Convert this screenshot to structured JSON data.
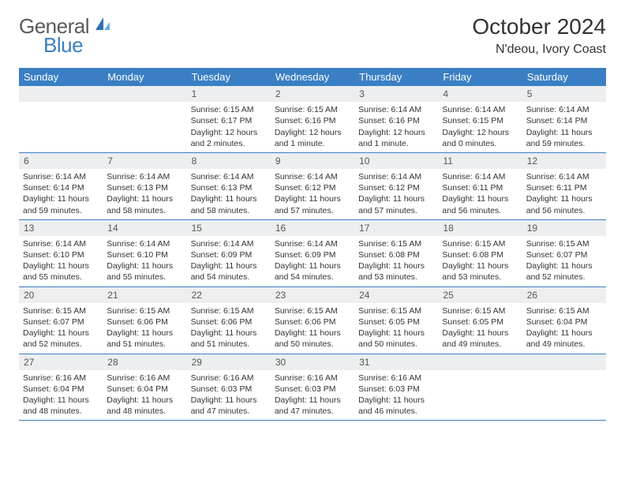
{
  "brand": {
    "general": "General",
    "blue": "Blue"
  },
  "title": "October 2024",
  "location": "N'deou, Ivory Coast",
  "colors": {
    "header_bg": "#3a7fc4",
    "header_text": "#ffffff",
    "daynum_bg": "#eceef0",
    "text": "#333333",
    "border": "#3a7fc4"
  },
  "weekdays": [
    "Sunday",
    "Monday",
    "Tuesday",
    "Wednesday",
    "Thursday",
    "Friday",
    "Saturday"
  ],
  "weeks": [
    [
      null,
      null,
      {
        "n": "1",
        "sr": "Sunrise: 6:15 AM",
        "ss": "Sunset: 6:17 PM",
        "dl": "Daylight: 12 hours and 2 minutes."
      },
      {
        "n": "2",
        "sr": "Sunrise: 6:15 AM",
        "ss": "Sunset: 6:16 PM",
        "dl": "Daylight: 12 hours and 1 minute."
      },
      {
        "n": "3",
        "sr": "Sunrise: 6:14 AM",
        "ss": "Sunset: 6:16 PM",
        "dl": "Daylight: 12 hours and 1 minute."
      },
      {
        "n": "4",
        "sr": "Sunrise: 6:14 AM",
        "ss": "Sunset: 6:15 PM",
        "dl": "Daylight: 12 hours and 0 minutes."
      },
      {
        "n": "5",
        "sr": "Sunrise: 6:14 AM",
        "ss": "Sunset: 6:14 PM",
        "dl": "Daylight: 11 hours and 59 minutes."
      }
    ],
    [
      {
        "n": "6",
        "sr": "Sunrise: 6:14 AM",
        "ss": "Sunset: 6:14 PM",
        "dl": "Daylight: 11 hours and 59 minutes."
      },
      {
        "n": "7",
        "sr": "Sunrise: 6:14 AM",
        "ss": "Sunset: 6:13 PM",
        "dl": "Daylight: 11 hours and 58 minutes."
      },
      {
        "n": "8",
        "sr": "Sunrise: 6:14 AM",
        "ss": "Sunset: 6:13 PM",
        "dl": "Daylight: 11 hours and 58 minutes."
      },
      {
        "n": "9",
        "sr": "Sunrise: 6:14 AM",
        "ss": "Sunset: 6:12 PM",
        "dl": "Daylight: 11 hours and 57 minutes."
      },
      {
        "n": "10",
        "sr": "Sunrise: 6:14 AM",
        "ss": "Sunset: 6:12 PM",
        "dl": "Daylight: 11 hours and 57 minutes."
      },
      {
        "n": "11",
        "sr": "Sunrise: 6:14 AM",
        "ss": "Sunset: 6:11 PM",
        "dl": "Daylight: 11 hours and 56 minutes."
      },
      {
        "n": "12",
        "sr": "Sunrise: 6:14 AM",
        "ss": "Sunset: 6:11 PM",
        "dl": "Daylight: 11 hours and 56 minutes."
      }
    ],
    [
      {
        "n": "13",
        "sr": "Sunrise: 6:14 AM",
        "ss": "Sunset: 6:10 PM",
        "dl": "Daylight: 11 hours and 55 minutes."
      },
      {
        "n": "14",
        "sr": "Sunrise: 6:14 AM",
        "ss": "Sunset: 6:10 PM",
        "dl": "Daylight: 11 hours and 55 minutes."
      },
      {
        "n": "15",
        "sr": "Sunrise: 6:14 AM",
        "ss": "Sunset: 6:09 PM",
        "dl": "Daylight: 11 hours and 54 minutes."
      },
      {
        "n": "16",
        "sr": "Sunrise: 6:14 AM",
        "ss": "Sunset: 6:09 PM",
        "dl": "Daylight: 11 hours and 54 minutes."
      },
      {
        "n": "17",
        "sr": "Sunrise: 6:15 AM",
        "ss": "Sunset: 6:08 PM",
        "dl": "Daylight: 11 hours and 53 minutes."
      },
      {
        "n": "18",
        "sr": "Sunrise: 6:15 AM",
        "ss": "Sunset: 6:08 PM",
        "dl": "Daylight: 11 hours and 53 minutes."
      },
      {
        "n": "19",
        "sr": "Sunrise: 6:15 AM",
        "ss": "Sunset: 6:07 PM",
        "dl": "Daylight: 11 hours and 52 minutes."
      }
    ],
    [
      {
        "n": "20",
        "sr": "Sunrise: 6:15 AM",
        "ss": "Sunset: 6:07 PM",
        "dl": "Daylight: 11 hours and 52 minutes."
      },
      {
        "n": "21",
        "sr": "Sunrise: 6:15 AM",
        "ss": "Sunset: 6:06 PM",
        "dl": "Daylight: 11 hours and 51 minutes."
      },
      {
        "n": "22",
        "sr": "Sunrise: 6:15 AM",
        "ss": "Sunset: 6:06 PM",
        "dl": "Daylight: 11 hours and 51 minutes."
      },
      {
        "n": "23",
        "sr": "Sunrise: 6:15 AM",
        "ss": "Sunset: 6:06 PM",
        "dl": "Daylight: 11 hours and 50 minutes."
      },
      {
        "n": "24",
        "sr": "Sunrise: 6:15 AM",
        "ss": "Sunset: 6:05 PM",
        "dl": "Daylight: 11 hours and 50 minutes."
      },
      {
        "n": "25",
        "sr": "Sunrise: 6:15 AM",
        "ss": "Sunset: 6:05 PM",
        "dl": "Daylight: 11 hours and 49 minutes."
      },
      {
        "n": "26",
        "sr": "Sunrise: 6:15 AM",
        "ss": "Sunset: 6:04 PM",
        "dl": "Daylight: 11 hours and 49 minutes."
      }
    ],
    [
      {
        "n": "27",
        "sr": "Sunrise: 6:16 AM",
        "ss": "Sunset: 6:04 PM",
        "dl": "Daylight: 11 hours and 48 minutes."
      },
      {
        "n": "28",
        "sr": "Sunrise: 6:16 AM",
        "ss": "Sunset: 6:04 PM",
        "dl": "Daylight: 11 hours and 48 minutes."
      },
      {
        "n": "29",
        "sr": "Sunrise: 6:16 AM",
        "ss": "Sunset: 6:03 PM",
        "dl": "Daylight: 11 hours and 47 minutes."
      },
      {
        "n": "30",
        "sr": "Sunrise: 6:16 AM",
        "ss": "Sunset: 6:03 PM",
        "dl": "Daylight: 11 hours and 47 minutes."
      },
      {
        "n": "31",
        "sr": "Sunrise: 6:16 AM",
        "ss": "Sunset: 6:03 PM",
        "dl": "Daylight: 11 hours and 46 minutes."
      },
      null,
      null
    ]
  ]
}
